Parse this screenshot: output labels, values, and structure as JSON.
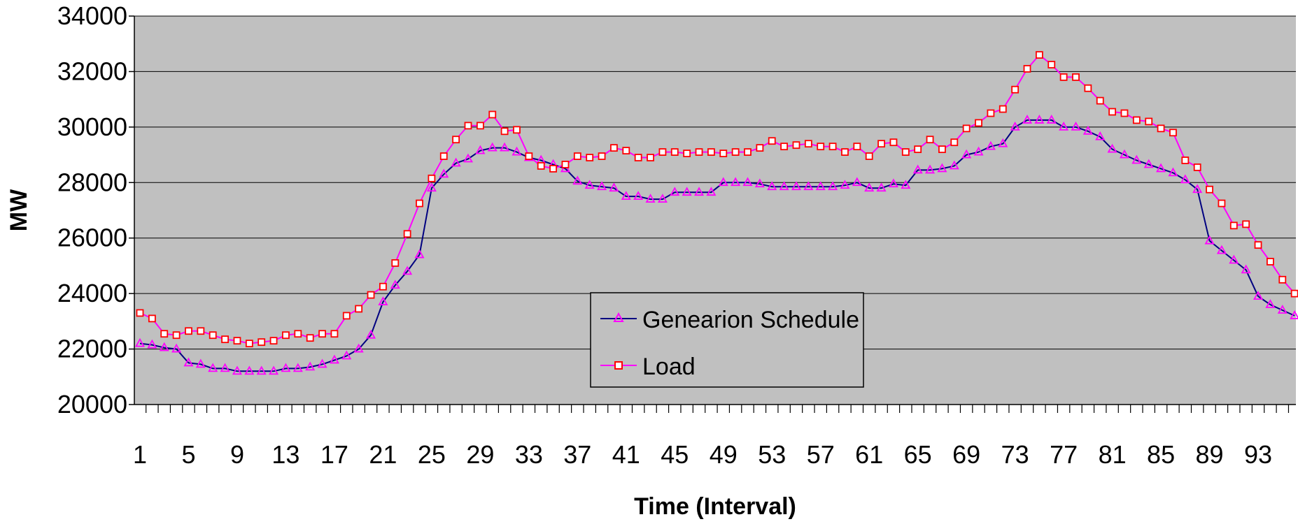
{
  "chart_data": {
    "type": "line",
    "xlabel": "Time (Interval)",
    "ylabel": "MW",
    "ylim": [
      20000,
      34000
    ],
    "yticks": [
      20000,
      22000,
      24000,
      26000,
      28000,
      30000,
      32000,
      34000
    ],
    "xlim": [
      1,
      96
    ],
    "xtick_labels": [
      1,
      5,
      9,
      13,
      17,
      21,
      25,
      29,
      33,
      37,
      41,
      45,
      49,
      53,
      57,
      61,
      65,
      69,
      73,
      77,
      81,
      85,
      89,
      93
    ],
    "grid": "horizontal",
    "plot_background": "#c0c0c0",
    "legend_position": "center-bottom",
    "series": [
      {
        "name": "Genearion Schedule",
        "line_color": "#000080",
        "marker": "triangle",
        "marker_color": "#ff00ff",
        "x": [
          1,
          2,
          3,
          4,
          5,
          6,
          7,
          8,
          9,
          10,
          11,
          12,
          13,
          14,
          15,
          16,
          17,
          18,
          19,
          20,
          21,
          22,
          23,
          24,
          25,
          26,
          27,
          28,
          29,
          30,
          31,
          32,
          33,
          34,
          35,
          36,
          37,
          38,
          39,
          40,
          41,
          42,
          43,
          44,
          45,
          46,
          47,
          48,
          49,
          50,
          51,
          52,
          53,
          54,
          55,
          56,
          57,
          58,
          59,
          60,
          61,
          62,
          63,
          64,
          65,
          66,
          67,
          68,
          69,
          70,
          71,
          72,
          73,
          74,
          75,
          76,
          77,
          78,
          79,
          80,
          81,
          82,
          83,
          84,
          85,
          86,
          87,
          88,
          89,
          90,
          91,
          92,
          93,
          94,
          95,
          96
        ],
        "values": [
          22200,
          22150,
          22050,
          22000,
          21500,
          21450,
          21300,
          21300,
          21200,
          21200,
          21200,
          21200,
          21300,
          21300,
          21350,
          21450,
          21600,
          21750,
          22000,
          22500,
          23700,
          24300,
          24800,
          25400,
          27800,
          28300,
          28700,
          28850,
          29150,
          29250,
          29250,
          29100,
          28900,
          28800,
          28650,
          28500,
          28050,
          27900,
          27850,
          27800,
          27500,
          27500,
          27400,
          27400,
          27650,
          27650,
          27650,
          27650,
          28000,
          28000,
          28000,
          27950,
          27850,
          27850,
          27850,
          27850,
          27850,
          27850,
          27900,
          28000,
          27800,
          27800,
          27950,
          27900,
          28450,
          28450,
          28500,
          28600,
          29000,
          29100,
          29300,
          29400,
          30000,
          30250,
          30250,
          30250,
          30000,
          30000,
          29850,
          29650,
          29200,
          29000,
          28800,
          28650,
          28500,
          28350,
          28100,
          27750,
          25900,
          25550,
          25200,
          24850,
          23900,
          23600,
          23400,
          23200
        ]
      },
      {
        "name": "Load",
        "line_color": "#ff00ff",
        "marker": "square",
        "marker_color": "#ff0000",
        "x": [
          1,
          2,
          3,
          4,
          5,
          6,
          7,
          8,
          9,
          10,
          11,
          12,
          13,
          14,
          15,
          16,
          17,
          18,
          19,
          20,
          21,
          22,
          23,
          24,
          25,
          26,
          27,
          28,
          29,
          30,
          31,
          32,
          33,
          34,
          35,
          36,
          37,
          38,
          39,
          40,
          41,
          42,
          43,
          44,
          45,
          46,
          47,
          48,
          49,
          50,
          51,
          52,
          53,
          54,
          55,
          56,
          57,
          58,
          59,
          60,
          61,
          62,
          63,
          64,
          65,
          66,
          67,
          68,
          69,
          70,
          71,
          72,
          73,
          74,
          75,
          76,
          77,
          78,
          79,
          80,
          81,
          82,
          83,
          84,
          85,
          86,
          87,
          88,
          89,
          90,
          91,
          92,
          93,
          94,
          95,
          96
        ],
        "values": [
          23300,
          23100,
          22550,
          22500,
          22650,
          22650,
          22500,
          22350,
          22300,
          22200,
          22250,
          22300,
          22500,
          22550,
          22400,
          22550,
          22550,
          23200,
          23450,
          23950,
          24250,
          25100,
          26150,
          27250,
          28150,
          28950,
          29550,
          30050,
          30050,
          30450,
          29850,
          29900,
          28950,
          28600,
          28500,
          28650,
          28950,
          28900,
          28950,
          29250,
          29150,
          28900,
          28900,
          29100,
          29100,
          29050,
          29100,
          29100,
          29050,
          29100,
          29100,
          29250,
          29500,
          29300,
          29350,
          29400,
          29300,
          29300,
          29100,
          29300,
          28950,
          29400,
          29450,
          29100,
          29200,
          29550,
          29200,
          29450,
          29950,
          30150,
          30500,
          30650,
          31350,
          32100,
          32600,
          32250,
          31800,
          31800,
          31400,
          30950,
          30550,
          30500,
          30250,
          30200,
          29950,
          29800,
          28800,
          28550,
          27750,
          27250,
          26450,
          26500,
          25750,
          25150,
          24500,
          24000
        ]
      }
    ]
  }
}
